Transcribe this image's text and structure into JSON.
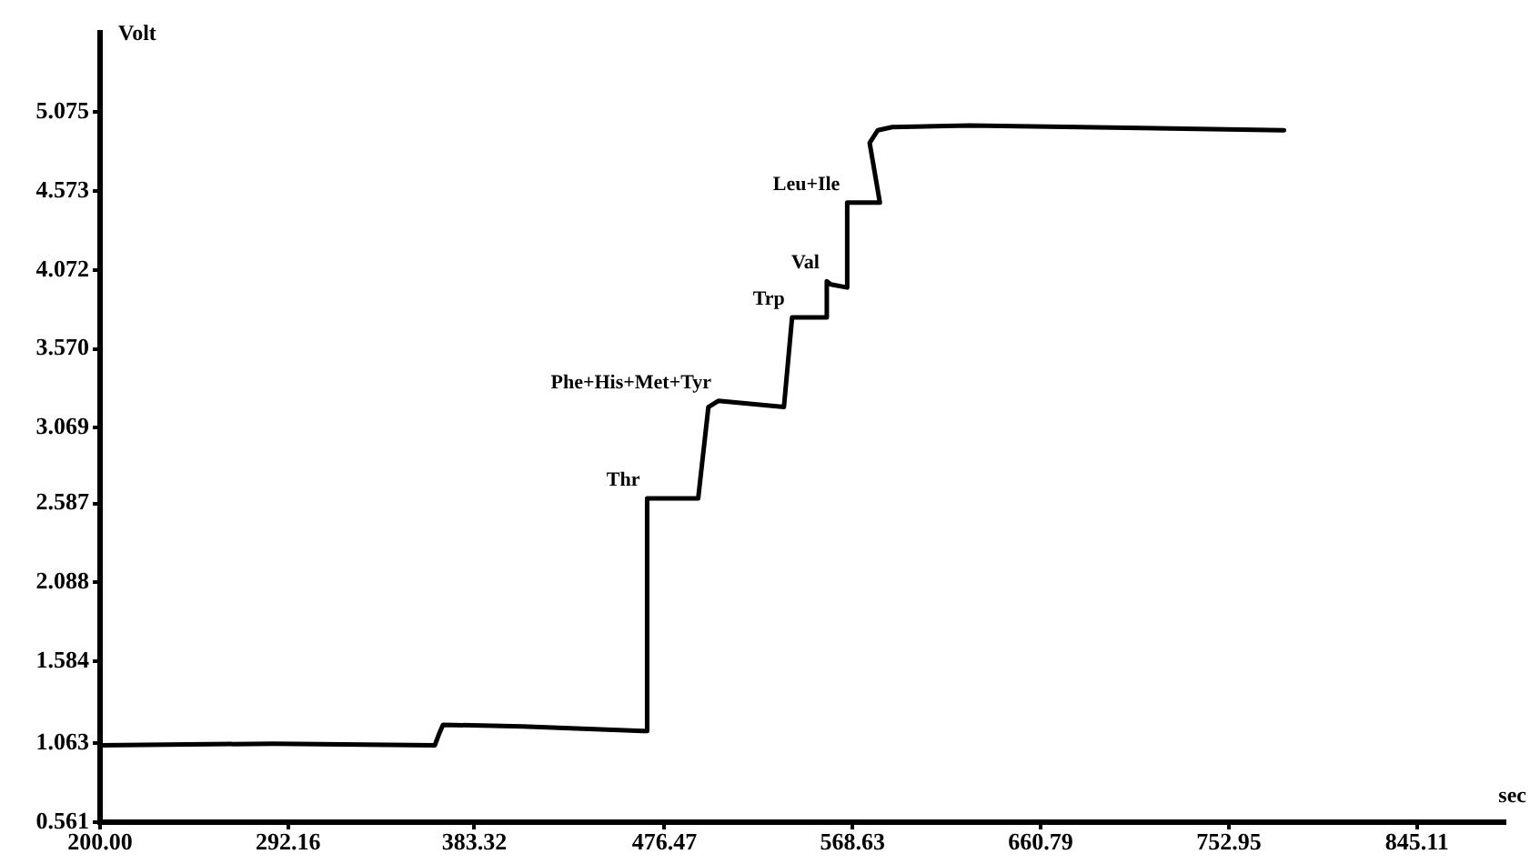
{
  "chart_data": {
    "type": "line",
    "xlabel": "sec",
    "ylabel": "Volt",
    "xlim": [
      200,
      888
    ],
    "ylim": [
      0.561,
      5.58
    ],
    "xticks": [
      {
        "value": 200,
        "label": "200.00"
      },
      292.16,
      383.32,
      476.47,
      568.63,
      660.79,
      752.95,
      845.11
    ],
    "yticks": [
      0.561,
      1.063,
      1.584,
      2.088,
      2.587,
      3.069,
      {
        "value": 3.57,
        "label": "3.570"
      },
      4.072,
      4.573,
      5.075
    ],
    "series": [
      {
        "color": "#000000",
        "x": [
          200,
          285,
          364,
          366,
          368,
          407,
          466,
          468,
          468,
          493,
          498,
          503,
          535,
          539,
          556,
          556,
          558,
          566,
          566,
          582,
          577,
          581,
          588,
          626,
          680,
          780
        ],
        "values": [
          1.05,
          1.06,
          1.05,
          1.12,
          1.18,
          1.17,
          1.14,
          1.14,
          2.62,
          2.62,
          3.2,
          3.24,
          3.2,
          3.77,
          3.77,
          4.0,
          3.98,
          3.96,
          4.5,
          4.5,
          4.88,
          4.96,
          4.98,
          4.99,
          4.98,
          4.96
        ]
      }
    ],
    "annotations": [
      {
        "text": "Thr",
        "x": 468,
        "y": 2.62
      },
      {
        "text": "Phe+His+Met+Tyr",
        "x": 503,
        "y": 3.24
      },
      {
        "text": "Trp",
        "x": 539,
        "y": 3.77
      },
      {
        "text": "Val",
        "x": 556,
        "y": 4.0
      },
      {
        "text": "Leu+Ile",
        "x": 566,
        "y": 4.5
      }
    ],
    "grid": false,
    "legend": false,
    "marker": "none",
    "line_style": "solid"
  }
}
